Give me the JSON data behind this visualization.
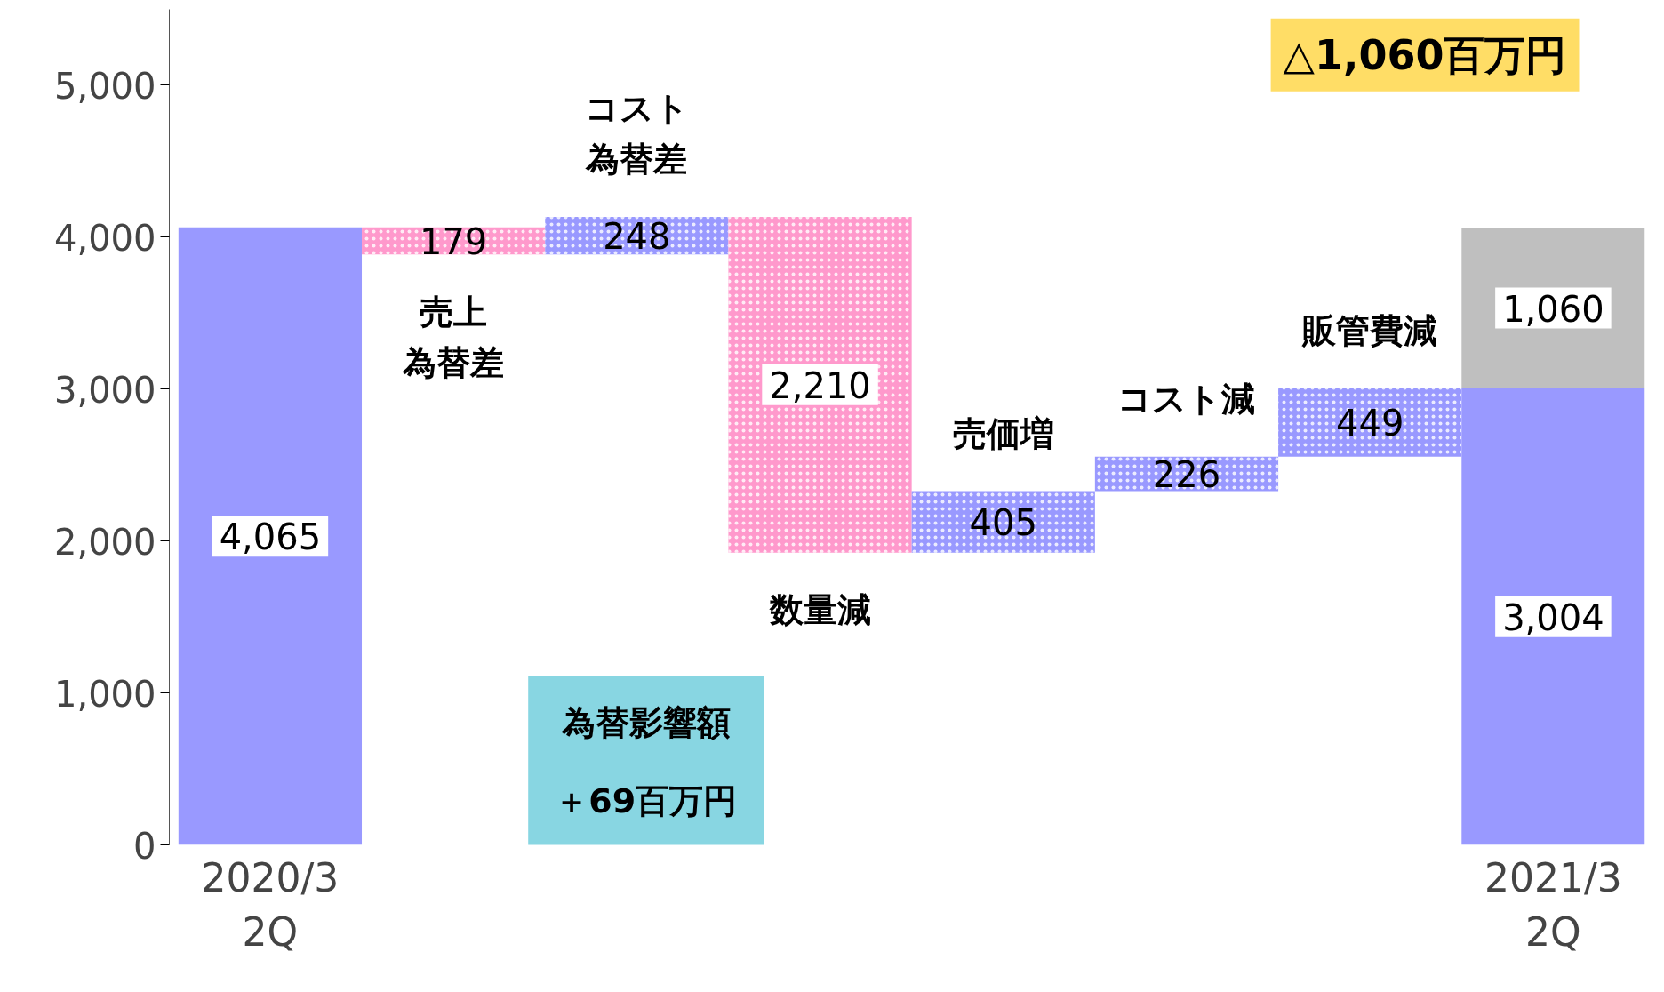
{
  "chart_data": {
    "type": "bar",
    "categories": [
      "2020/3\n2Q",
      null,
      null,
      null,
      null,
      null,
      null,
      "2021/3\n2Q"
    ],
    "series": [
      {
        "color": "#9999ff",
        "colors": [
          "#9999ff",
          "#ff99cc",
          "#9999ff",
          "#ff99cc",
          "#9999ff",
          "#9999ff",
          "#9999ff",
          "#9999ff"
        ],
        "base": [
          0,
          4065,
          3886,
          4134,
          1924,
          2329,
          2555,
          0
        ],
        "values": [
          4065,
          -179,
          248,
          -2210,
          405,
          226,
          449,
          3004
        ],
        "value_labels": [
          "4,065",
          "179",
          "248",
          "2,210",
          "405",
          "226",
          "449",
          "3,004"
        ]
      },
      {
        "color": "#bfbfbf",
        "base": [
          null,
          null,
          null,
          null,
          null,
          null,
          null,
          3004
        ],
        "values": [
          null,
          null,
          null,
          null,
          null,
          null,
          null,
          1060
        ],
        "value_labels": [
          null,
          null,
          null,
          null,
          null,
          null,
          null,
          "1,060"
        ]
      }
    ],
    "ylim": [
      0,
      5500
    ],
    "yticks": [
      0,
      {
        "value": 1000,
        "label": "1,000"
      },
      {
        "value": 2000,
        "label": "2,000"
      },
      {
        "value": 3000,
        "label": "3,000"
      },
      {
        "value": 4000,
        "label": "4,000"
      },
      {
        "value": 5000,
        "label": "5,000"
      }
    ],
    "grid": false,
    "annotations": [
      "売上為替差",
      "コスト為替差",
      "数量減",
      "売価増",
      "コスト減",
      "販管費減",
      "為替影響額＋69百万円",
      "△1,060百万円"
    ]
  }
}
